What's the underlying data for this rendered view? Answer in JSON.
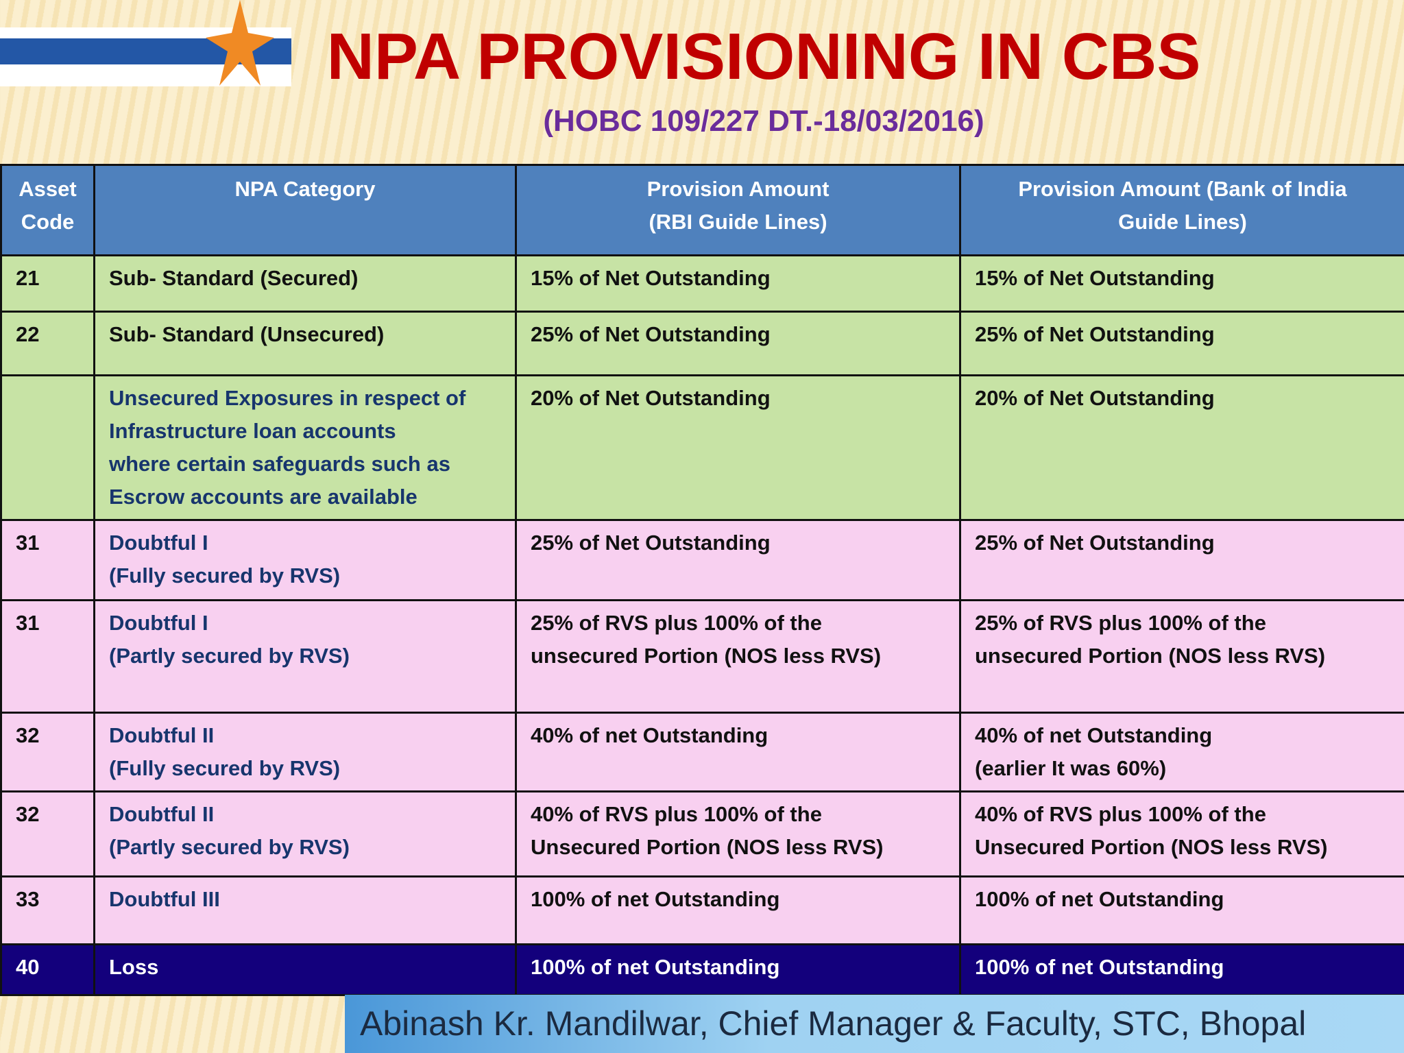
{
  "title": "NPA PROVISIONING IN CBS",
  "subtitle": "(HOBC 109/227 DT.-18/03/2016)",
  "table": {
    "header": [
      "Asset\nCode",
      "NPA Category",
      "Provision Amount\n(RBI Guide Lines)",
      "Provision Amount (Bank of  India\nGuide Lines)"
    ],
    "rows": [
      {
        "color": "#c7e3a5",
        "cells": [
          "21",
          "Sub- Standard (Secured)",
          "15% of Net Outstanding",
          "15% of Net Outstanding"
        ]
      },
      {
        "color": "#c7e3a5",
        "cells": [
          "22",
          "Sub- Standard (Unsecured)",
          "25% of Net Outstanding",
          "25% of Net Outstanding"
        ]
      },
      {
        "color": "#c7e3a5",
        "cells": [
          "",
          "Unsecured Exposures in respect of\nInfrastructure loan accounts\nwhere certain safeguards such as\nEscrow accounts are available",
          "20% of Net Outstanding",
          "20% of Net Outstanding"
        ]
      },
      {
        "color": "#f8d0f0",
        "cells": [
          "31",
          "Doubtful I\n(Fully secured by RVS)",
          "25% of Net Outstanding",
          "25% of Net Outstanding"
        ]
      },
      {
        "color": "#f8d0f0",
        "cells": [
          "31",
          "Doubtful I\n (Partly secured by RVS)",
          "25% of RVS plus 100% of the\nunsecured Portion (NOS less RVS)",
          "25% of RVS plus 100% of the\nunsecured Portion (NOS less RVS)"
        ]
      },
      {
        "color": "#f8d0f0",
        "cells": [
          "32",
          "Doubtful II\n(Fully secured by RVS)",
          "40% of net Outstanding",
          "40% of net Outstanding\n(earlier It was 60%)"
        ]
      },
      {
        "color": "#f8d0f0",
        "cells": [
          "32",
          "Doubtful II\n(Partly secured by RVS)",
          "40% of RVS plus 100% of the\nUnsecured Portion (NOS less RVS)",
          "40% of RVS plus 100% of the\nUnsecured Portion (NOS less RVS)"
        ]
      },
      {
        "color": "#f8d0f0",
        "cells": [
          "33",
          "Doubtful III",
          "100% of net Outstanding",
          "100% of net Outstanding"
        ]
      },
      {
        "color": "#13007c",
        "cells": [
          "40",
          "Loss",
          "100% of net Outstanding",
          "100% of net Outstanding"
        ]
      }
    ]
  },
  "footer": "Abinash Kr. Mandilwar, Chief Manager & Faculty, STC, Bhopal"
}
